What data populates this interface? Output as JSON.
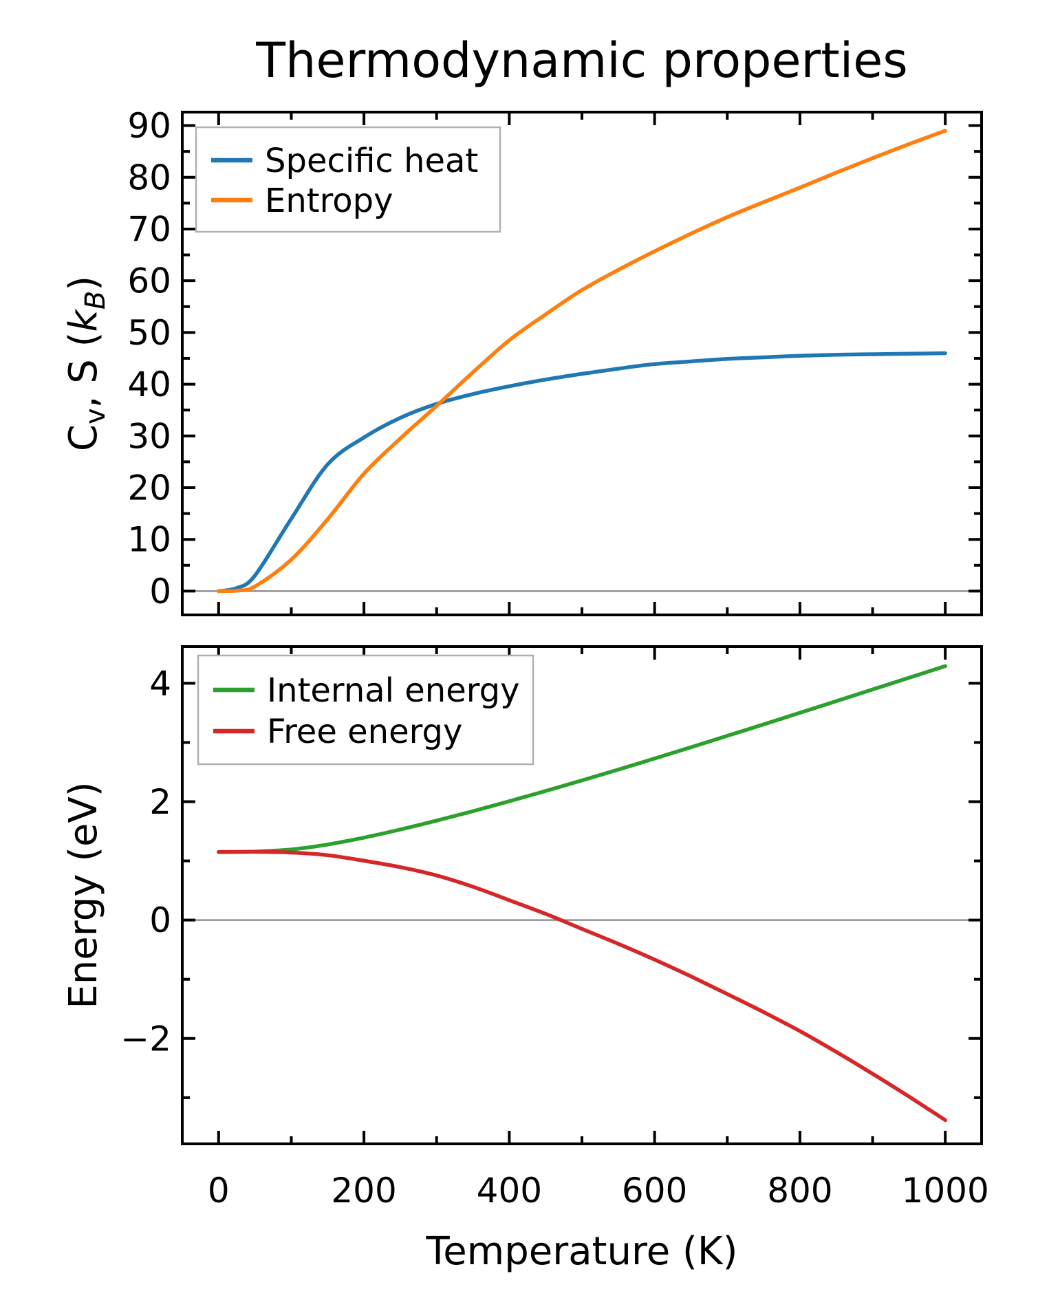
{
  "figure": {
    "title": "Thermodynamic properties",
    "xlabel": "Temperature (K)",
    "background": "#ffffff"
  },
  "colors": {
    "specific_heat": "#1f77b4",
    "entropy": "#ff7f0e",
    "internal_energy": "#2ca02c",
    "free_energy": "#d62728",
    "zero_line": "#909090",
    "legend_border": "#b0b0b0",
    "axes": "#000000"
  },
  "chart_data": [
    {
      "type": "line",
      "panel": "top",
      "ylabel": "Cv, S (kB)",
      "ylabel_parts": [
        {
          "t": "C"
        },
        {
          "t": "v",
          "sub": true
        },
        {
          "t": ", S ("
        },
        {
          "t": "k",
          "italic": true
        },
        {
          "t": "B",
          "sub": true,
          "italic": true
        },
        {
          "t": ")"
        }
      ],
      "x": [
        0,
        25,
        50,
        100,
        150,
        200,
        250,
        300,
        350,
        400,
        450,
        500,
        550,
        600,
        650,
        700,
        750,
        800,
        850,
        900,
        950,
        1000
      ],
      "series": [
        {
          "name": "Specific heat",
          "color": "#1f77b4",
          "values": [
            0,
            0.6,
            3,
            14,
            24.5,
            29.7,
            33.5,
            36.2,
            38.1,
            39.6,
            40.9,
            42,
            43,
            43.9,
            44.4,
            44.9,
            45.2,
            45.5,
            45.7,
            45.8,
            45.9,
            46
          ]
        },
        {
          "name": "Entropy",
          "color": "#ff7f0e",
          "values": [
            0,
            0.1,
            0.9,
            6.1,
            13.9,
            22.7,
            29.5,
            35.8,
            42.3,
            48.5,
            53.5,
            58.2,
            62.1,
            65.7,
            69.1,
            72.3,
            75.2,
            78,
            80.9,
            83.7,
            86.4,
            89
          ]
        }
      ],
      "xlim": [
        -50,
        1050
      ],
      "ylim": [
        -4.6,
        92.6
      ],
      "xticks": [
        0,
        200,
        400,
        600,
        800,
        1000
      ],
      "xtick_labels": [
        "0",
        "200",
        "400",
        "600",
        "800",
        "1000"
      ],
      "xminor": [
        100,
        300,
        500,
        700,
        900
      ],
      "yticks": [
        0,
        10,
        20,
        30,
        40,
        50,
        60,
        70,
        80,
        90
      ],
      "ytick_labels": [
        "0",
        "10",
        "20",
        "30",
        "40",
        "50",
        "60",
        "70",
        "80",
        "90"
      ],
      "yminor": [
        5,
        15,
        25,
        35,
        45,
        55,
        65,
        75,
        85
      ],
      "zero_line": true,
      "show_xtick_labels": false,
      "legend_position": "upper left",
      "grid": false
    },
    {
      "type": "line",
      "panel": "bottom",
      "ylabel": "Energy (eV)",
      "ylabel_parts": [
        {
          "t": "Energy (eV)"
        }
      ],
      "x": [
        0,
        25,
        50,
        100,
        150,
        200,
        250,
        300,
        350,
        400,
        450,
        500,
        550,
        600,
        650,
        700,
        750,
        800,
        850,
        900,
        950,
        1000
      ],
      "series": [
        {
          "name": "Internal energy",
          "color": "#2ca02c",
          "values": [
            1.15,
            1.152,
            1.157,
            1.193,
            1.276,
            1.393,
            1.529,
            1.679,
            1.839,
            2.007,
            2.18,
            2.359,
            2.542,
            2.729,
            2.919,
            3.112,
            3.306,
            3.501,
            3.698,
            3.895,
            4.092,
            4.29
          ]
        },
        {
          "name": "Free energy",
          "color": "#d62728",
          "values": [
            1.15,
            1.151,
            1.153,
            1.14,
            1.096,
            1.002,
            0.894,
            0.754,
            0.563,
            0.335,
            0.105,
            -0.149,
            -0.401,
            -0.668,
            -0.951,
            -1.25,
            -1.554,
            -1.876,
            -2.227,
            -2.596,
            -2.981,
            -3.379
          ]
        }
      ],
      "xlim": [
        -50,
        1050
      ],
      "ylim": [
        -3.78,
        4.62
      ],
      "xticks": [
        0,
        200,
        400,
        600,
        800,
        1000
      ],
      "xtick_labels": [
        "0",
        "200",
        "400",
        "600",
        "800",
        "1000"
      ],
      "xminor": [
        100,
        300,
        500,
        700,
        900
      ],
      "yticks": [
        -2,
        0,
        2,
        4
      ],
      "ytick_labels": [
        "−2",
        "0",
        "2",
        "4"
      ],
      "yminor": [
        -3,
        -1,
        1,
        3
      ],
      "zero_line": true,
      "show_xtick_labels": true,
      "legend_position": "upper left",
      "grid": false
    }
  ]
}
